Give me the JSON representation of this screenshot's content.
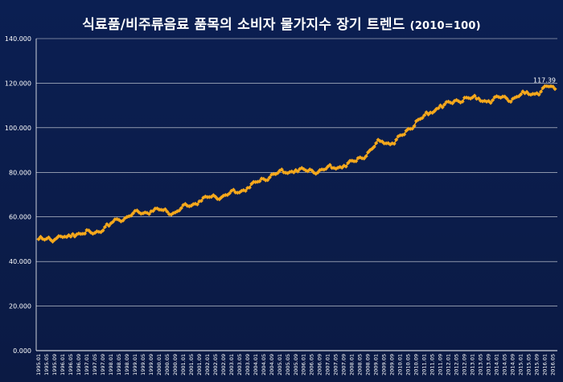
{
  "chart_data": {
    "type": "line",
    "title": "식료품/비주류음료 품목의 소비자 물가지수 장기 트렌드",
    "title_suffix": "(2010=100)",
    "ylim": [
      0,
      140
    ],
    "yticks": [
      "0.000",
      "20.000",
      "40.000",
      "60.000",
      "80.000",
      "100.000",
      "120.000",
      "140.000"
    ],
    "x_start": "1995.01",
    "x_end": "2016.06",
    "tick_labels": [
      "1995.01",
      "1995.05",
      "1995.09",
      "1996.01",
      "1996.05",
      "1996.09",
      "1997.01",
      "1997.05",
      "1997.09",
      "1998.01",
      "1998.05",
      "1998.09",
      "1999.01",
      "1999.05",
      "1999.09",
      "2000.01",
      "2000.05",
      "2000.09",
      "2001.01",
      "2001.05",
      "2001.09",
      "2002.01",
      "2002.05",
      "2002.09",
      "2003.01",
      "2003.05",
      "2003.09",
      "2004.01",
      "2004.05",
      "2004.09",
      "2005.01",
      "2005.05",
      "2005.09",
      "2006.01",
      "2006.05",
      "2006.09",
      "2007.01",
      "2007.05",
      "2007.09",
      "2008.01",
      "2008.05",
      "2008.09",
      "2009.01",
      "2009.05",
      "2009.09",
      "2010.01",
      "2010.05",
      "2010.09",
      "2011.01",
      "2011.05",
      "2011.09",
      "2012.01",
      "2012.05",
      "2012.09",
      "2013.01",
      "2013.05",
      "2013.09",
      "2014.01",
      "2014.05",
      "2014.09",
      "2015.01",
      "2015.05",
      "2015.09",
      "2016.01",
      "2016.05"
    ],
    "anchors": [
      [
        "1995.01",
        50.0
      ],
      [
        "1995.06",
        50.8
      ],
      [
        "1995.09",
        49.8
      ],
      [
        "1996.03",
        51.0
      ],
      [
        "1996.06",
        52.3
      ],
      [
        "1996.12",
        52.5
      ],
      [
        "1997.06",
        53.5
      ],
      [
        "1997.12",
        56.0
      ],
      [
        "1998.04",
        59.0
      ],
      [
        "1998.09",
        60.0
      ],
      [
        "1999.03",
        62.0
      ],
      [
        "1999.09",
        62.5
      ],
      [
        "2000.03",
        63.0
      ],
      [
        "2000.09",
        62.0
      ],
      [
        "2001.03",
        65.0
      ],
      [
        "2001.09",
        67.0
      ],
      [
        "2002.03",
        69.0
      ],
      [
        "2002.09",
        69.5
      ],
      [
        "2003.03",
        71.0
      ],
      [
        "2003.09",
        73.0
      ],
      [
        "2004.03",
        76.0
      ],
      [
        "2004.09",
        79.0
      ],
      [
        "2005.03",
        80.0
      ],
      [
        "2005.09",
        81.0
      ],
      [
        "2006.03",
        80.5
      ],
      [
        "2006.09",
        81.0
      ],
      [
        "2007.03",
        82.0
      ],
      [
        "2007.09",
        83.0
      ],
      [
        "2008.03",
        85.0
      ],
      [
        "2008.09",
        89.0
      ],
      [
        "2009.03",
        94.0
      ],
      [
        "2009.09",
        93.0
      ],
      [
        "2010.03",
        97.0
      ],
      [
        "2010.09",
        103.0
      ],
      [
        "2011.03",
        106.0
      ],
      [
        "2011.09",
        110.0
      ],
      [
        "2012.03",
        111.0
      ],
      [
        "2012.09",
        113.5
      ],
      [
        "2013.03",
        113.0
      ],
      [
        "2013.09",
        112.0
      ],
      [
        "2014.03",
        113.5
      ],
      [
        "2014.09",
        113.0
      ],
      [
        "2015.03",
        115.5
      ],
      [
        "2015.09",
        115.5
      ],
      [
        "2016.03",
        118.5
      ],
      [
        "2016.06",
        117.39
      ]
    ],
    "last_value_label": "117.39",
    "series_color": "#f5a81c",
    "grid": true,
    "legend": "none"
  },
  "colors": {
    "background": "#0b1d4b",
    "gridline": "#ffffff",
    "marker": "#f5a81c"
  }
}
